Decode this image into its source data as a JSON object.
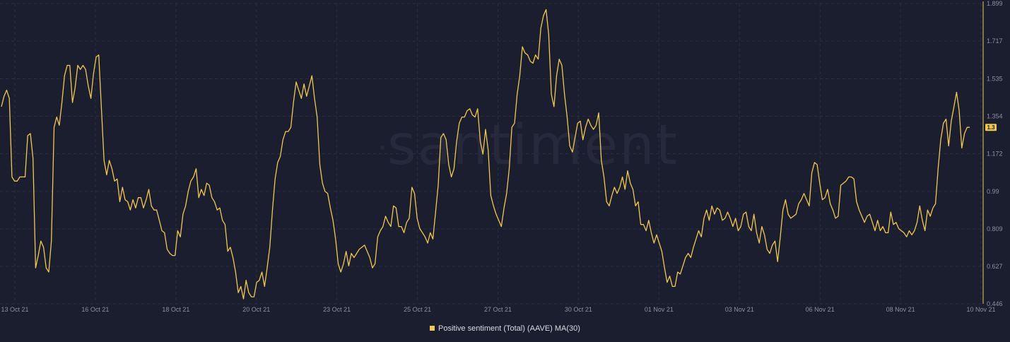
{
  "watermark": "santiment",
  "legend": {
    "label": "Positive sentiment (Total) (AAVE) MA(30)"
  },
  "colors": {
    "background": "#1b1e2e",
    "line": "#f2c94c",
    "grid": "#2a2e40",
    "tick": "#8c90a0"
  },
  "chart_data": {
    "type": "line",
    "title": "",
    "xlabel": "",
    "ylabel": "",
    "x_tick_labels": [
      "13 Oct 21",
      "16 Oct 21",
      "18 Oct 21",
      "20 Oct 21",
      "23 Oct 21",
      "25 Oct 21",
      "27 Oct 21",
      "30 Oct 21",
      "01 Nov 21",
      "03 Nov 21",
      "06 Nov 21",
      "08 Nov 21",
      "10 Nov 21"
    ],
    "y_ticks": [
      0.446,
      0.627,
      0.809,
      0.99,
      1.172,
      1.354,
      1.535,
      1.717,
      1.899
    ],
    "y_tick_labels": [
      "0.446",
      "0.627",
      "0.809",
      "0.99",
      "1.172",
      "1.354",
      "1.535",
      "1.717",
      "1.899"
    ],
    "ylim": [
      0.446,
      1.899
    ],
    "grid": true,
    "legend_position": "bottom-center",
    "current_value_label": "1.3",
    "series": [
      {
        "name": "Positive sentiment (Total) (AAVE) MA(30)",
        "color": "#f2c94c",
        "values": [
          1.4,
          1.45,
          1.48,
          1.44,
          1.06,
          1.04,
          1.04,
          1.06,
          1.06,
          1.06,
          1.26,
          1.27,
          1.15,
          0.62,
          0.68,
          0.75,
          0.72,
          0.62,
          0.6,
          0.75,
          1.3,
          1.35,
          1.31,
          1.42,
          1.55,
          1.6,
          1.6,
          1.42,
          1.49,
          1.6,
          1.58,
          1.6,
          1.58,
          1.5,
          1.44,
          1.56,
          1.64,
          1.65,
          1.39,
          1.14,
          1.07,
          1.14,
          1.1,
          1.04,
          1.05,
          0.94,
          1.01,
          0.95,
          0.94,
          0.9,
          0.95,
          0.91,
          0.96,
          0.96,
          0.91,
          0.95,
          1.0,
          0.92,
          0.9,
          0.9,
          0.85,
          0.8,
          0.79,
          0.71,
          0.69,
          0.68,
          0.68,
          0.8,
          0.77,
          0.88,
          0.92,
          0.99,
          1.04,
          1.06,
          1.1,
          0.96,
          1.0,
          0.97,
          1.03,
          1.02,
          0.96,
          0.94,
          0.9,
          0.91,
          0.85,
          0.83,
          0.7,
          0.72,
          0.67,
          0.6,
          0.5,
          0.53,
          0.47,
          0.56,
          0.5,
          0.48,
          0.48,
          0.55,
          0.56,
          0.6,
          0.53,
          0.62,
          0.72,
          0.9,
          1.05,
          1.13,
          1.16,
          1.24,
          1.28,
          1.28,
          1.3,
          1.42,
          1.52,
          1.48,
          1.44,
          1.51,
          1.45,
          1.5,
          1.55,
          1.44,
          1.35,
          1.12,
          1.03,
          0.99,
          0.98,
          0.91,
          0.85,
          0.76,
          0.64,
          0.6,
          0.64,
          0.7,
          0.63,
          0.69,
          0.67,
          0.69,
          0.71,
          0.72,
          0.73,
          0.7,
          0.67,
          0.62,
          0.64,
          0.77,
          0.8,
          0.82,
          0.87,
          0.84,
          0.82,
          0.92,
          0.91,
          0.82,
          0.82,
          0.79,
          0.84,
          0.86,
          1.01,
          0.98,
          0.86,
          0.81,
          0.79,
          0.77,
          0.74,
          0.79,
          0.76,
          0.89,
          1.02,
          1.25,
          1.27,
          1.24,
          1.12,
          1.06,
          1.1,
          1.23,
          1.32,
          1.35,
          1.35,
          1.38,
          1.39,
          1.36,
          1.35,
          1.39,
          1.23,
          1.17,
          1.29,
          1.19,
          0.97,
          0.92,
          0.88,
          0.85,
          0.82,
          0.91,
          0.98,
          1.1,
          1.3,
          1.32,
          1.46,
          1.55,
          1.69,
          1.66,
          1.65,
          1.62,
          1.61,
          1.65,
          1.63,
          1.78,
          1.84,
          1.87,
          1.75,
          1.46,
          1.4,
          1.55,
          1.63,
          1.6,
          1.46,
          1.35,
          1.21,
          1.18,
          1.25,
          1.32,
          1.33,
          1.24,
          1.3,
          1.34,
          1.31,
          1.29,
          1.31,
          1.37,
          1.14,
          1.06,
          0.94,
          0.92,
          0.97,
          1.01,
          0.98,
          1.01,
          1.06,
          1.0,
          1.09,
          1.03,
          1.0,
          0.92,
          0.94,
          0.83,
          0.83,
          0.8,
          0.85,
          0.79,
          0.74,
          0.78,
          0.74,
          0.7,
          0.62,
          0.55,
          0.58,
          0.53,
          0.53,
          0.6,
          0.59,
          0.63,
          0.67,
          0.69,
          0.67,
          0.72,
          0.76,
          0.8,
          0.77,
          0.86,
          0.9,
          0.85,
          0.92,
          0.88,
          0.91,
          0.9,
          0.85,
          0.86,
          0.89,
          0.86,
          0.82,
          0.86,
          0.8,
          0.82,
          0.88,
          0.89,
          0.82,
          0.8,
          0.88,
          0.79,
          0.74,
          0.82,
          0.78,
          0.71,
          0.69,
          0.73,
          0.75,
          0.65,
          0.77,
          0.9,
          0.95,
          0.88,
          0.86,
          0.87,
          0.88,
          0.93,
          0.95,
          0.98,
          0.95,
          0.92,
          1.08,
          1.13,
          1.12,
          1.03,
          0.95,
          0.96,
          1.0,
          0.93,
          0.9,
          0.86,
          0.87,
          1.02,
          1.03,
          1.04,
          1.06,
          1.06,
          1.05,
          0.94,
          0.9,
          0.87,
          0.84,
          0.87,
          0.88,
          0.84,
          0.8,
          0.85,
          0.8,
          0.82,
          0.79,
          0.79,
          0.89,
          0.83,
          0.84,
          0.81,
          0.8,
          0.79,
          0.77,
          0.8,
          0.78,
          0.8,
          0.84,
          0.92,
          0.85,
          0.8,
          0.9,
          0.87,
          0.91,
          0.93,
          1.1,
          1.24,
          1.32,
          1.34,
          1.21,
          1.33,
          1.4,
          1.47,
          1.38,
          1.2,
          1.27,
          1.3,
          1.3
        ],
        "x_start_date": "13 Oct 21",
        "x_end_date": "10 Nov 21"
      }
    ]
  }
}
